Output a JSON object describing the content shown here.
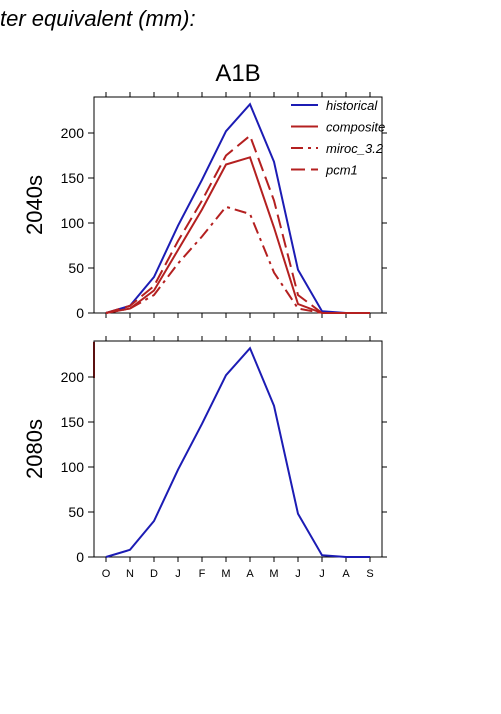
{
  "page_title": "ter equivalent (mm):",
  "chart_data": [
    {
      "type": "line",
      "title": "A1B",
      "ylabel": "2040s",
      "ylim": [
        0,
        240
      ],
      "yticks": [
        0,
        50,
        100,
        150,
        200
      ],
      "legend": "upper right",
      "series": [
        {
          "name": "historical",
          "color": "#1c1cb4",
          "dash": "solid",
          "values": [
            0,
            8,
            40,
            97,
            148,
            202,
            232,
            168,
            48,
            2,
            0,
            0
          ]
        },
        {
          "name": "composite",
          "color": "#b42020",
          "dash": "solid",
          "values": [
            0,
            5,
            25,
            70,
            115,
            165,
            173,
            95,
            10,
            0,
            0,
            0
          ]
        },
        {
          "name": "miroc_3.2",
          "color": "#b42020",
          "dash": "dashdot",
          "values": [
            0,
            5,
            20,
            55,
            85,
            118,
            110,
            45,
            5,
            0,
            0,
            0
          ]
        },
        {
          "name": "pcm1",
          "color": "#b42020",
          "dash": "dashed",
          "values": [
            0,
            8,
            30,
            80,
            125,
            175,
            197,
            125,
            20,
            0,
            0,
            0
          ]
        }
      ]
    },
    {
      "type": "line",
      "ylabel": "2080s",
      "categories": [
        "O",
        "N",
        "D",
        "J",
        "F",
        "M",
        "A",
        "M",
        "J",
        "J",
        "A",
        "S"
      ],
      "ylim": [
        0,
        240
      ],
      "yticks": [
        0,
        50,
        100,
        150,
        200
      ],
      "series": [
        {
          "color": "#1c1cb4",
          "dash": "solid",
          "values": [
            0,
            8,
            40,
            97,
            148,
            202,
            232,
            168,
            48,
            2,
            0,
            0
          ]
        }
      ]
    }
  ]
}
